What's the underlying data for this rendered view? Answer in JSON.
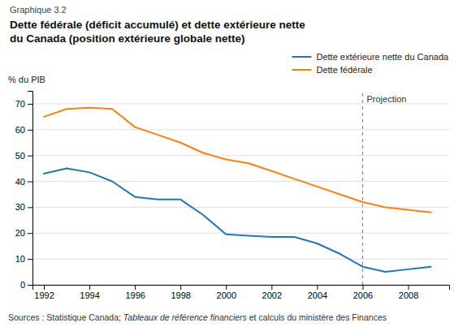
{
  "chart_data": {
    "type": "line",
    "subtitle": "Graphique 3.2",
    "title": [
      "Dette fédérale (déficit accumulé) et dette extérieure nette",
      "du Canada (position extérieure globale nette)"
    ],
    "y_label": "% du PIB",
    "source": [
      "Sources : Statistique Canada; ",
      "Tableaux de référence financiers",
      " et calculs du ministère des Finances"
    ],
    "annotations": [
      {
        "text": "Projection",
        "x": 2006
      }
    ],
    "x": [
      1992,
      1993,
      1994,
      1995,
      1996,
      1997,
      1998,
      1999,
      2000,
      2001,
      2002,
      2003,
      2004,
      2005,
      2006,
      2007,
      2008,
      2009
    ],
    "series": [
      {
        "name": "Dette extérieure nette du Canada",
        "values": [
          43,
          45,
          43.5,
          40,
          34,
          33,
          33,
          27,
          19.5,
          19,
          18.5,
          18.5,
          16,
          12,
          7,
          5,
          6,
          7
        ]
      },
      {
        "name": "Dette fédérale",
        "values": [
          65,
          68,
          68.5,
          68,
          61,
          58,
          55,
          51,
          48.5,
          47,
          44,
          41,
          38,
          35,
          32,
          30,
          29,
          28
        ]
      }
    ],
    "xlim": [
      1991.5,
      2009.8
    ],
    "xticks": [
      1992,
      1994,
      1996,
      1998,
      2000,
      2002,
      2004,
      2006,
      2008
    ],
    "ylim": [
      0,
      75
    ],
    "yticks": [
      0,
      10,
      20,
      30,
      40,
      50,
      60,
      70
    ],
    "grid": true,
    "legend": "upper right"
  }
}
